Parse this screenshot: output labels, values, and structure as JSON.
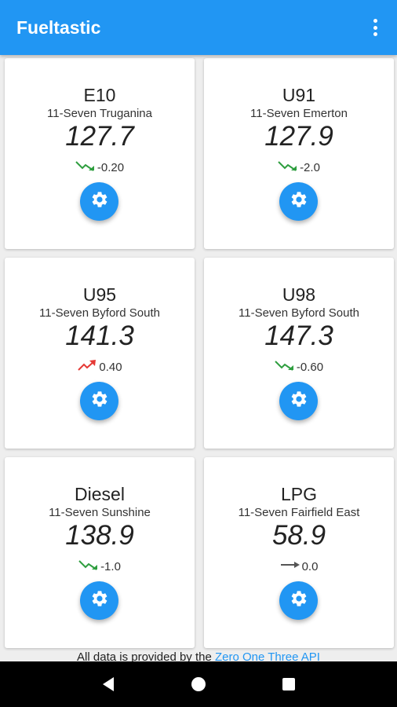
{
  "app": {
    "title": "Fueltastic"
  },
  "cards": [
    {
      "fuel": "E10",
      "station": "11-Seven Truganina",
      "price": "127.7",
      "change": "-0.20",
      "trend": "down",
      "trend_color": "#2e9e3f"
    },
    {
      "fuel": "U91",
      "station": "11-Seven Emerton",
      "price": "127.9",
      "change": "-2.0",
      "trend": "down",
      "trend_color": "#2e9e3f"
    },
    {
      "fuel": "U95",
      "station": "11-Seven Byford South",
      "price": "141.3",
      "change": "0.40",
      "trend": "up",
      "trend_color": "#e53935"
    },
    {
      "fuel": "U98",
      "station": "11-Seven Byford South",
      "price": "147.3",
      "change": "-0.60",
      "trend": "down",
      "trend_color": "#2e9e3f"
    },
    {
      "fuel": "Diesel",
      "station": "11-Seven Sunshine",
      "price": "138.9",
      "change": "-1.0",
      "trend": "down",
      "trend_color": "#2e9e3f"
    },
    {
      "fuel": "LPG",
      "station": "11-Seven Fairfield East",
      "price": "58.9",
      "change": "0.0",
      "trend": "flat",
      "trend_color": "#555555"
    }
  ],
  "footer": {
    "prefix": "All data is provided by the ",
    "link": "Zero One Three API"
  },
  "icons": {
    "menu": "more-vert-icon",
    "settings": "gear-icon",
    "back": "back-triangle-icon",
    "home": "home-circle-icon",
    "recents": "recents-square-icon"
  },
  "colors": {
    "primary": "#2196f3",
    "trend_down": "#2e9e3f",
    "trend_up": "#e53935"
  }
}
